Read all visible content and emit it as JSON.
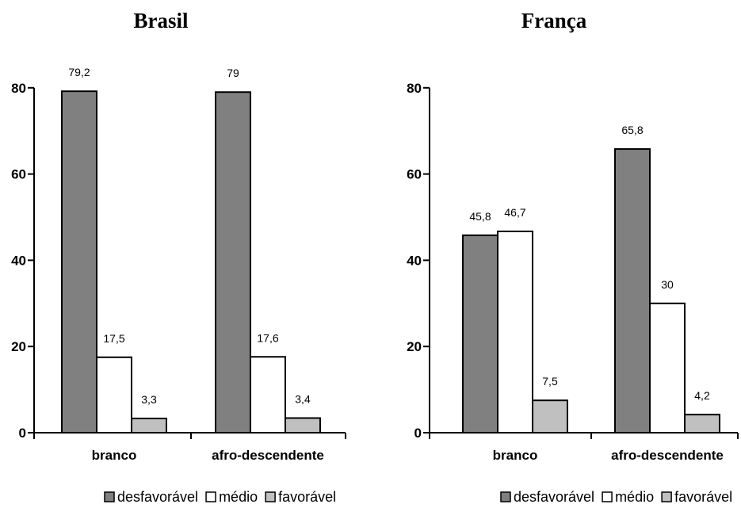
{
  "chart_data": [
    {
      "type": "bar",
      "title": "Brasil",
      "categories": [
        "branco",
        "afro-descendente"
      ],
      "series": [
        {
          "name": "desfavorável",
          "values": [
            79.2,
            79
          ]
        },
        {
          "name": "médio",
          "values": [
            17.5,
            17.6
          ]
        },
        {
          "name": "favorável",
          "values": [
            3.3,
            3.4
          ]
        }
      ],
      "data_labels": [
        [
          "79,2",
          "79"
        ],
        [
          "17,5",
          "17,6"
        ],
        [
          "3,3",
          "3,4"
        ]
      ],
      "yticks": [
        "0",
        "20",
        "40",
        "60",
        "80"
      ],
      "ylim": [
        0,
        80
      ],
      "grid": false,
      "legend_position": "bottom"
    },
    {
      "type": "bar",
      "title": "França",
      "categories": [
        "branco",
        "afro-descendente"
      ],
      "series": [
        {
          "name": "desfavorável",
          "values": [
            45.8,
            65.8
          ]
        },
        {
          "name": "médio",
          "values": [
            46.7,
            30
          ]
        },
        {
          "name": "favorável",
          "values": [
            7.5,
            4.2
          ]
        }
      ],
      "data_labels": [
        [
          "45,8",
          "65,8"
        ],
        [
          "46,7",
          "30"
        ],
        [
          "7,5",
          "4,2"
        ]
      ],
      "yticks": [
        "0",
        "20",
        "40",
        "60",
        "80"
      ],
      "ylim": [
        0,
        80
      ],
      "grid": false,
      "legend_position": "bottom"
    }
  ],
  "colors": {
    "desfavorável": "#808080",
    "médio": "#ffffff",
    "favorável": "#c0c0c0"
  }
}
